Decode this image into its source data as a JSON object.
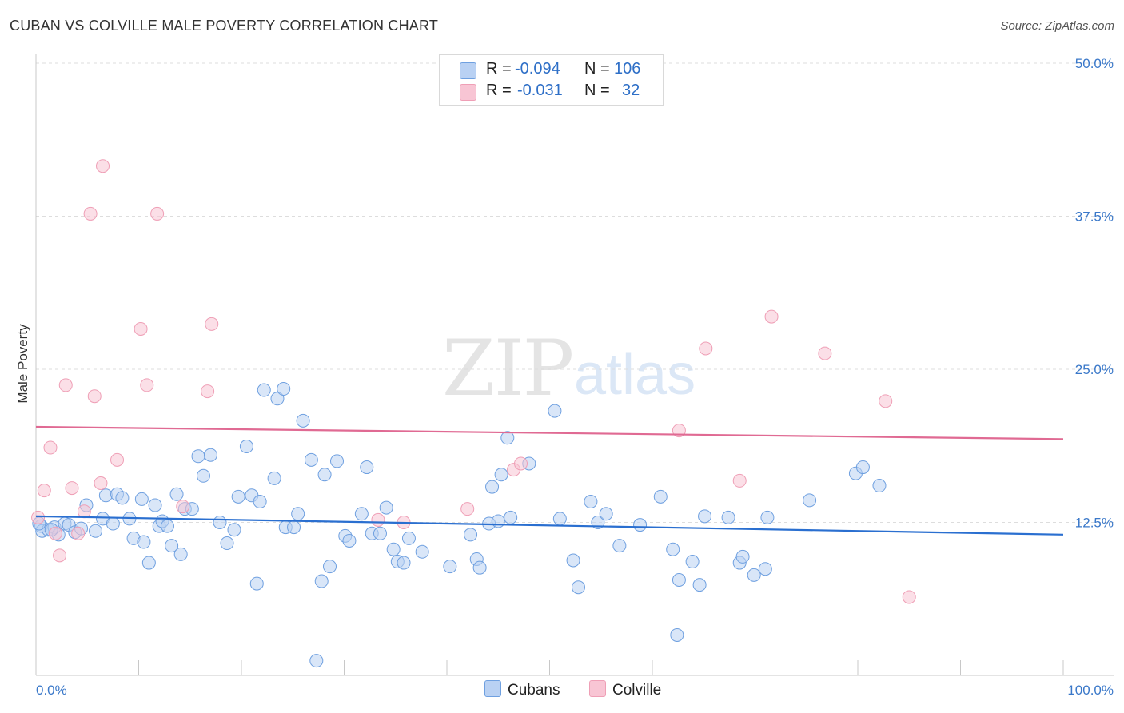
{
  "title": "CUBAN VS COLVILLE MALE POVERTY CORRELATION CHART",
  "source": "Source: ZipAtlas.com",
  "watermark": {
    "zip": "ZIP",
    "atlas": "atlas"
  },
  "legend": {
    "rows": [
      {
        "r_label": "R = ",
        "r_value": "-0.094",
        "n_label": "N = ",
        "n_value": "106",
        "color": "#b9d1f3"
      },
      {
        "r_label": "R = ",
        "r_value": "-0.031",
        "n_label": "N = ",
        "n_value": "32",
        "color": "#f8c5d4"
      }
    ]
  },
  "bottom_legend": [
    {
      "label": "Cubans",
      "color": "#b9d1f3"
    },
    {
      "label": "Colville",
      "color": "#f8c5d4"
    }
  ],
  "chart_data": {
    "type": "scatter",
    "title": "CUBAN VS COLVILLE MALE POVERTY CORRELATION CHART",
    "xlabel": "",
    "ylabel": "Male Poverty",
    "xlim": [
      0,
      100
    ],
    "ylim": [
      0,
      50
    ],
    "x_tick_labels": [
      "0.0%",
      "100.0%"
    ],
    "y_ticks": [
      12.5,
      25.0,
      37.5,
      50.0
    ],
    "y_tick_labels": [
      "12.5%",
      "25.0%",
      "37.5%",
      "50.0%"
    ],
    "grid": "horizontal dashed",
    "legend_position": "top-center",
    "series": [
      {
        "name": "Cubans",
        "color": "#6fa0e0",
        "fill": "#b9d1f3",
        "trend": {
          "y_start": 13.0,
          "y_end": 11.5,
          "color": "#2a6fd0"
        },
        "points": [
          [
            0.5,
            12.2
          ],
          [
            0.6,
            11.8
          ],
          [
            1.2,
            11.9
          ],
          [
            1.8,
            12.1
          ],
          [
            2.2,
            11.5
          ],
          [
            2.8,
            12.4
          ],
          [
            3.2,
            12.3
          ],
          [
            3.8,
            11.7
          ],
          [
            4.4,
            12.0
          ],
          [
            4.9,
            13.9
          ],
          [
            5.8,
            11.8
          ],
          [
            6.5,
            12.8
          ],
          [
            6.8,
            14.7
          ],
          [
            7.5,
            12.4
          ],
          [
            7.9,
            14.8
          ],
          [
            8.4,
            14.5
          ],
          [
            9.1,
            12.8
          ],
          [
            9.5,
            11.2
          ],
          [
            10.3,
            14.4
          ],
          [
            10.5,
            10.9
          ],
          [
            11.0,
            9.2
          ],
          [
            11.6,
            13.9
          ],
          [
            12.0,
            12.2
          ],
          [
            12.3,
            12.6
          ],
          [
            12.8,
            12.2
          ],
          [
            13.2,
            10.6
          ],
          [
            13.7,
            14.8
          ],
          [
            14.1,
            9.9
          ],
          [
            14.5,
            13.6
          ],
          [
            15.2,
            13.6
          ],
          [
            15.8,
            17.9
          ],
          [
            16.3,
            16.3
          ],
          [
            17.0,
            18.0
          ],
          [
            17.9,
            12.5
          ],
          [
            18.6,
            10.8
          ],
          [
            19.3,
            11.9
          ],
          [
            19.7,
            14.6
          ],
          [
            20.5,
            18.7
          ],
          [
            21.0,
            14.7
          ],
          [
            21.5,
            7.5
          ],
          [
            21.8,
            14.2
          ],
          [
            22.2,
            23.3
          ],
          [
            23.2,
            16.1
          ],
          [
            23.5,
            22.6
          ],
          [
            24.1,
            23.4
          ],
          [
            24.3,
            12.1
          ],
          [
            25.1,
            12.1
          ],
          [
            25.5,
            13.2
          ],
          [
            26.0,
            20.8
          ],
          [
            26.8,
            17.6
          ],
          [
            27.3,
            1.2
          ],
          [
            27.8,
            7.7
          ],
          [
            28.1,
            16.4
          ],
          [
            28.6,
            8.9
          ],
          [
            29.3,
            17.5
          ],
          [
            30.1,
            11.4
          ],
          [
            30.5,
            11.0
          ],
          [
            31.7,
            13.2
          ],
          [
            32.2,
            17.0
          ],
          [
            32.7,
            11.6
          ],
          [
            33.5,
            11.6
          ],
          [
            34.1,
            13.7
          ],
          [
            34.8,
            10.3
          ],
          [
            35.2,
            9.3
          ],
          [
            35.8,
            9.2
          ],
          [
            36.3,
            11.2
          ],
          [
            37.6,
            10.1
          ],
          [
            40.3,
            8.9
          ],
          [
            42.3,
            11.5
          ],
          [
            42.9,
            9.5
          ],
          [
            43.2,
            8.8
          ],
          [
            44.1,
            12.4
          ],
          [
            44.4,
            15.4
          ],
          [
            45.0,
            12.6
          ],
          [
            45.3,
            16.4
          ],
          [
            45.9,
            19.4
          ],
          [
            46.2,
            12.9
          ],
          [
            48.0,
            17.3
          ],
          [
            50.5,
            21.6
          ],
          [
            51.0,
            12.8
          ],
          [
            52.3,
            9.4
          ],
          [
            52.8,
            7.2
          ],
          [
            54.0,
            14.2
          ],
          [
            54.7,
            12.5
          ],
          [
            55.5,
            13.2
          ],
          [
            56.8,
            10.6
          ],
          [
            58.8,
            12.3
          ],
          [
            60.8,
            14.6
          ],
          [
            62.0,
            10.3
          ],
          [
            62.4,
            3.3
          ],
          [
            62.6,
            7.8
          ],
          [
            63.9,
            9.3
          ],
          [
            64.6,
            7.4
          ],
          [
            65.1,
            13.0
          ],
          [
            67.4,
            12.9
          ],
          [
            68.5,
            9.2
          ],
          [
            68.8,
            9.7
          ],
          [
            69.9,
            8.2
          ],
          [
            71.0,
            8.7
          ],
          [
            71.2,
            12.9
          ],
          [
            75.3,
            14.3
          ],
          [
            79.8,
            16.5
          ],
          [
            80.5,
            17.0
          ],
          [
            82.1,
            15.5
          ],
          [
            0.3,
            12.4
          ],
          [
            1.5,
            11.9
          ]
        ]
      },
      {
        "name": "Colville",
        "color": "#ef9fb6",
        "fill": "#f8c5d4",
        "trend": {
          "y_start": 20.3,
          "y_end": 19.3,
          "color": "#e06a93"
        },
        "points": [
          [
            0.2,
            12.9
          ],
          [
            0.8,
            15.1
          ],
          [
            1.4,
            18.6
          ],
          [
            1.9,
            11.6
          ],
          [
            2.3,
            9.8
          ],
          [
            2.9,
            23.7
          ],
          [
            3.5,
            15.3
          ],
          [
            4.1,
            11.6
          ],
          [
            4.7,
            13.4
          ],
          [
            5.3,
            37.7
          ],
          [
            5.7,
            22.8
          ],
          [
            6.3,
            15.7
          ],
          [
            6.5,
            41.6
          ],
          [
            7.9,
            17.6
          ],
          [
            10.2,
            28.3
          ],
          [
            10.8,
            23.7
          ],
          [
            11.8,
            37.7
          ],
          [
            14.3,
            13.8
          ],
          [
            16.7,
            23.2
          ],
          [
            17.1,
            28.7
          ],
          [
            33.3,
            12.7
          ],
          [
            35.8,
            12.5
          ],
          [
            42.0,
            13.6
          ],
          [
            46.5,
            16.8
          ],
          [
            47.2,
            17.3
          ],
          [
            62.6,
            20.0
          ],
          [
            65.2,
            26.7
          ],
          [
            68.5,
            15.9
          ],
          [
            71.6,
            29.3
          ],
          [
            76.8,
            26.3
          ],
          [
            82.7,
            22.4
          ],
          [
            85.0,
            6.4
          ]
        ]
      }
    ]
  }
}
